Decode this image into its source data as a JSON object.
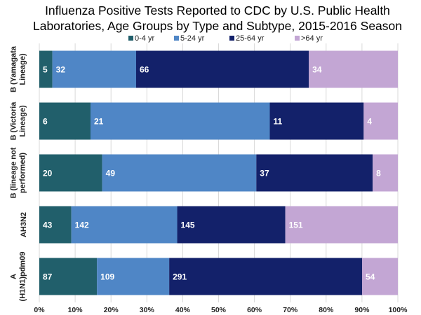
{
  "chart_data": {
    "type": "bar",
    "orientation": "horizontal",
    "stacking": "percent",
    "title_lines": [
      "Influenza Positive Tests Reported to CDC by U.S. Public Health",
      "Laboratories, Age Groups by Type and Subtype, 2015-2016 Season"
    ],
    "categories": [
      [
        "B (Yamagata",
        "Lineage)"
      ],
      [
        "B (Victoria",
        "Lineage)"
      ],
      [
        "B (lineage not",
        "performed)"
      ],
      [
        "AH3N2"
      ],
      [
        "A",
        "(H1N1)pdm09"
      ]
    ],
    "series": [
      {
        "name": "0-4 yr",
        "color": "#215f6b",
        "values": [
          5,
          6,
          20,
          43,
          87
        ]
      },
      {
        "name": "5-24 yr",
        "color": "#4f86c6",
        "values": [
          32,
          21,
          49,
          142,
          109
        ]
      },
      {
        "name": "25-64 yr",
        "color": "#13216a",
        "values": [
          66,
          11,
          37,
          145,
          291
        ]
      },
      {
        "name": ">64 yr",
        "color": "#c3a6d4",
        "values": [
          34,
          4,
          8,
          151,
          54
        ]
      }
    ],
    "xlim": [
      0,
      100
    ],
    "x_ticks": [
      "0%",
      "10%",
      "20%",
      "30%",
      "40%",
      "50%",
      "60%",
      "70%",
      "80%",
      "90%",
      "100%"
    ],
    "grid": true,
    "legend_position": "top",
    "data_labels": true
  }
}
